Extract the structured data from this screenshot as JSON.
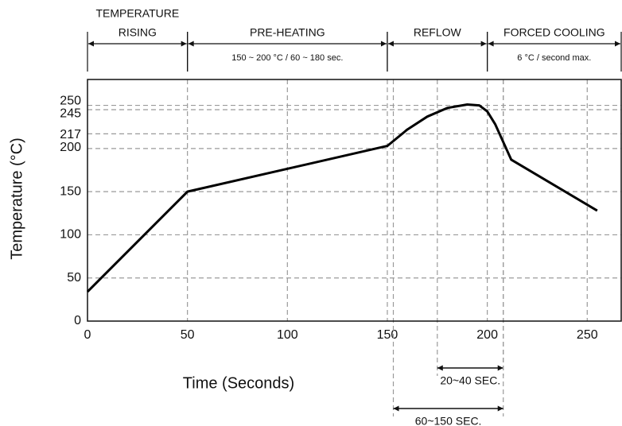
{
  "chart_data": {
    "type": "line",
    "x_label": "Time (Seconds)",
    "y_label": "Temperature (°C)",
    "xlim": [
      0,
      267
    ],
    "ylim": [
      0,
      280
    ],
    "xticks": [
      0,
      50,
      100,
      150,
      200,
      250
    ],
    "yticks": [
      0,
      50,
      100,
      150,
      200,
      217,
      245,
      250
    ],
    "grid": true,
    "series": [
      {
        "color": "#000000",
        "x": [
          0,
          50,
          150,
          160,
          170,
          180,
          190,
          196,
          200,
          204,
          212,
          255
        ],
        "values": [
          34,
          150,
          203,
          222,
          237,
          247,
          251,
          250,
          243,
          228,
          187,
          128
        ]
      }
    ],
    "phases": [
      {
        "label": [
          "TEMPERATURE",
          "RISING"
        ],
        "from": 0,
        "to": 50
      },
      {
        "label": [
          "PRE-HEATING"
        ],
        "note": "150 ~ 200 °C / 60 ~ 180 sec.",
        "from": 50,
        "to": 150
      },
      {
        "label": [
          "REFLOW"
        ],
        "from": 150,
        "to": 200
      },
      {
        "label": [
          "FORCED COOLING"
        ],
        "note": "6 °C / second max.",
        "from": 200,
        "to": 267
      }
    ],
    "brackets": [
      {
        "label": "20~40 SEC.",
        "from": 175,
        "to": 208
      },
      {
        "label": "60~150 SEC.",
        "from": 153,
        "to": 208
      }
    ]
  }
}
